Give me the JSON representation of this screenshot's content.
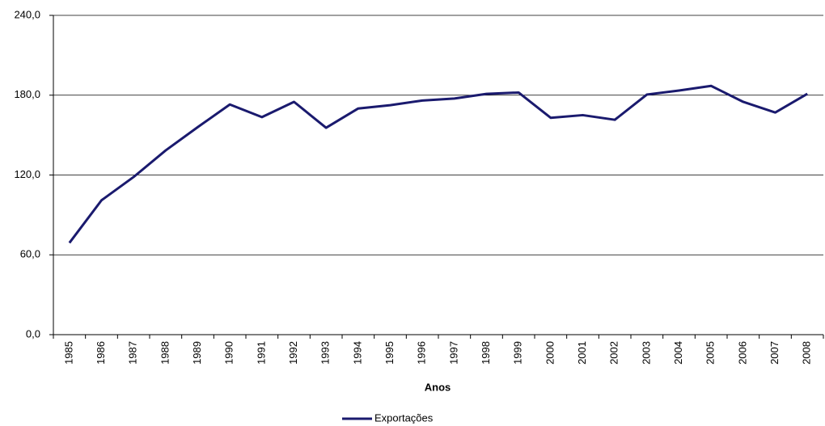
{
  "chart_data": {
    "type": "line",
    "x_label": "Anos",
    "categories": [
      "1985",
      "1986",
      "1987",
      "1988",
      "1989",
      "1990",
      "1991",
      "1992",
      "1993",
      "1994",
      "1995",
      "1996",
      "1997",
      "1998",
      "1999",
      "2000",
      "2001",
      "2002",
      "2003",
      "2004",
      "2005",
      "2006",
      "2007",
      "2008"
    ],
    "series": [
      {
        "name": "Exportações",
        "color": "#1a1a6e",
        "values": [
          69,
          101,
          118.5,
          138.5,
          156,
          173,
          163.5,
          175,
          155.5,
          170,
          172.5,
          176,
          177.5,
          181,
          182,
          163,
          165,
          161.5,
          180.5,
          183.5,
          187,
          175,
          167,
          181
        ]
      }
    ],
    "ylim": [
      0,
      240
    ],
    "yticks": [
      {
        "value": 0,
        "label": "0,0"
      },
      {
        "value": 60,
        "label": "60,0"
      },
      {
        "value": 120,
        "label": "120,0"
      },
      {
        "value": 180,
        "label": "180,0"
      },
      {
        "value": 240,
        "label": "240,0"
      }
    ],
    "grid": true,
    "legend": "bottom"
  }
}
